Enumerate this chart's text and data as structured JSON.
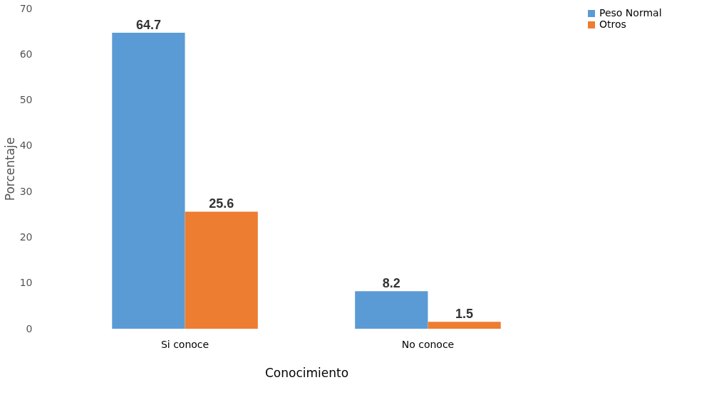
{
  "chart_data": {
    "type": "bar",
    "xlabel": "Conocimiento",
    "ylabel": "Porcentaje",
    "categories": [
      "Si conoce",
      "No conoce"
    ],
    "series": [
      {
        "name": "Peso Normal",
        "color": "#5b9bd5",
        "values": [
          64.7,
          8.2
        ]
      },
      {
        "name": "Otros",
        "color": "#ed7d31",
        "values": [
          25.6,
          1.5
        ]
      }
    ],
    "ylim": [
      0,
      70
    ],
    "yticks": [
      0,
      10,
      20,
      30,
      40,
      50,
      60,
      70
    ],
    "grid": false,
    "legend": "right",
    "data_labels": true
  }
}
